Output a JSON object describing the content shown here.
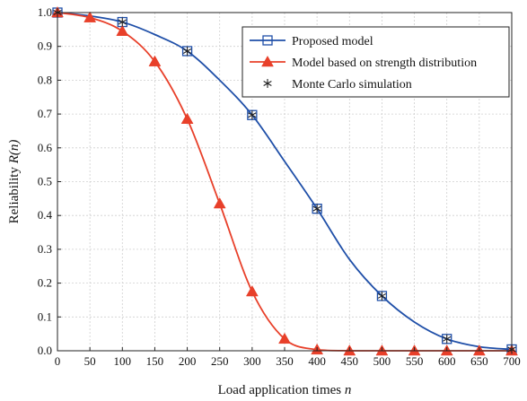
{
  "chart_data": {
    "type": "line",
    "title": "",
    "xlabel": "Load application times",
    "xlabel_var": "n",
    "ylabel": "Reliability",
    "ylabel_var": "R(n)",
    "xlim": [
      0,
      700
    ],
    "ylim": [
      0,
      1.0
    ],
    "x_ticks": [
      0,
      50,
      100,
      150,
      200,
      250,
      300,
      350,
      400,
      450,
      500,
      550,
      600,
      650,
      700
    ],
    "y_ticks": [
      0.0,
      0.1,
      0.2,
      0.3,
      0.4,
      0.5,
      0.6,
      0.7,
      0.8,
      0.9,
      1.0
    ],
    "y_tick_labels": [
      "0.0",
      "0.1",
      "0.2",
      "0.3",
      "0.4",
      "0.5",
      "0.6",
      "0.7",
      "0.8",
      "0.9",
      "1.0"
    ],
    "grid": true,
    "legend_position": "top-right",
    "series": [
      {
        "name": "Proposed model",
        "color": "#1f4fa8",
        "marker": "open-square",
        "x": [
          0,
          50,
          100,
          150,
          200,
          250,
          300,
          350,
          400,
          450,
          500,
          550,
          600,
          650,
          700
        ],
        "y": [
          1.0,
          0.99,
          0.972,
          0.935,
          0.886,
          0.8,
          0.697,
          0.56,
          0.42,
          0.27,
          0.162,
          0.085,
          0.035,
          0.012,
          0.004
        ],
        "marker_x": [
          0,
          100,
          200,
          300,
          400,
          500,
          600,
          700
        ],
        "marker_y": [
          1.0,
          0.972,
          0.886,
          0.697,
          0.42,
          0.162,
          0.035,
          0.004
        ]
      },
      {
        "name": "Model based on strength distribution",
        "color": "#e8402a",
        "marker": "filled-triangle",
        "x": [
          0,
          50,
          100,
          150,
          200,
          250,
          300,
          350,
          400,
          450,
          500,
          550,
          600,
          650,
          700
        ],
        "y": [
          1.0,
          0.985,
          0.945,
          0.855,
          0.685,
          0.435,
          0.175,
          0.035,
          0.003,
          0.0,
          0.0,
          0.0,
          0.0,
          0.0,
          0.0
        ],
        "marker_x": [
          0,
          50,
          100,
          150,
          200,
          250,
          300,
          350,
          400,
          450,
          500,
          550,
          600,
          650,
          700
        ],
        "marker_y": [
          1.0,
          0.985,
          0.945,
          0.855,
          0.685,
          0.435,
          0.175,
          0.035,
          0.003,
          0.0,
          0.0,
          0.0,
          0.0,
          0.0,
          0.0
        ]
      },
      {
        "name": "Monte Carlo simulation",
        "color": "#222222",
        "marker": "asterisk",
        "line": false,
        "x": [
          0,
          100,
          200,
          300,
          400,
          500,
          600,
          700
        ],
        "y": [
          1.0,
          0.972,
          0.886,
          0.697,
          0.42,
          0.162,
          0.035,
          0.004
        ]
      }
    ]
  }
}
